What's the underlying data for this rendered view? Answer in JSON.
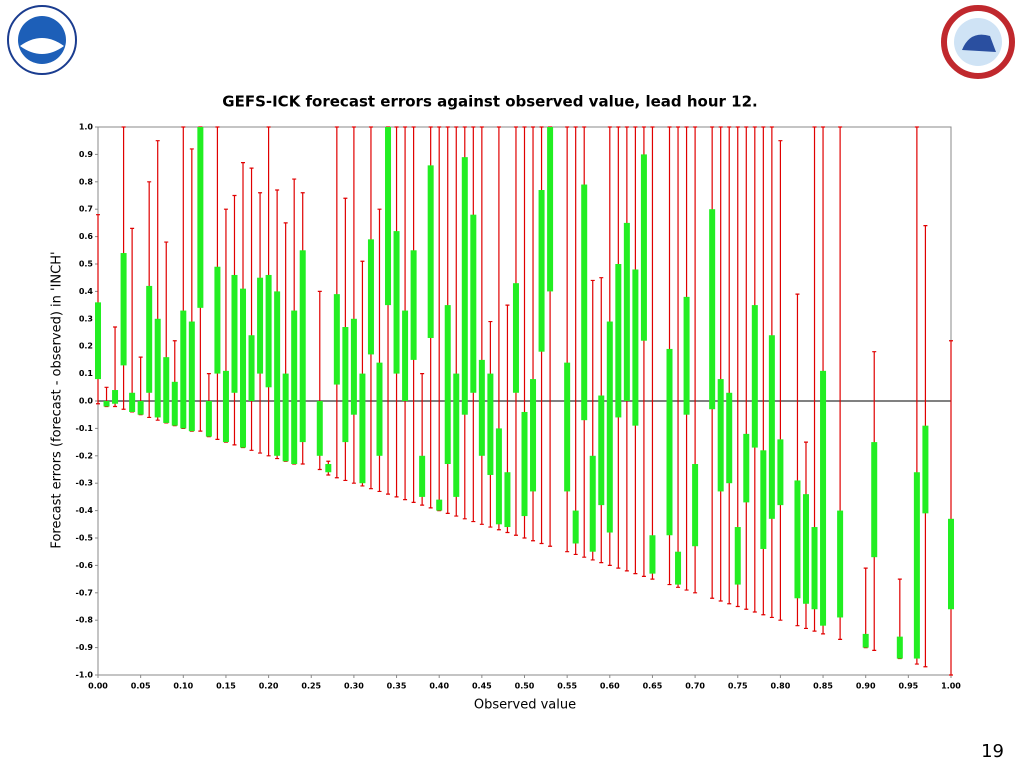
{
  "page_number": "19",
  "chart_data": {
    "type": "box",
    "title": "GEFS-ICK forecast errors against observed value, lead hour 12.",
    "x_label": "Observed value",
    "y_label": "Forecast errors (forecast - observed) in 'INCH'",
    "whisker_color": "#e00000",
    "box_color": "#22ee22",
    "x": [
      0.0,
      0.01,
      0.02,
      0.03,
      0.04,
      0.05,
      0.06,
      0.07,
      0.08,
      0.09,
      0.1,
      0.11,
      0.12,
      0.13,
      0.14,
      0.15,
      0.16,
      0.17,
      0.18,
      0.19,
      0.2,
      0.21,
      0.22,
      0.23,
      0.24,
      0.26,
      0.27,
      0.28,
      0.29,
      0.3,
      0.31,
      0.32,
      0.33,
      0.34,
      0.35,
      0.36,
      0.37,
      0.38,
      0.39,
      0.4,
      0.41,
      0.42,
      0.43,
      0.44,
      0.45,
      0.46,
      0.47,
      0.48,
      0.49,
      0.5,
      0.51,
      0.52,
      0.53,
      0.55,
      0.56,
      0.57,
      0.58,
      0.59,
      0.6,
      0.61,
      0.62,
      0.63,
      0.64,
      0.65,
      0.67,
      0.68,
      0.69,
      0.7,
      0.72,
      0.73,
      0.74,
      0.75,
      0.76,
      0.77,
      0.78,
      0.79,
      0.8,
      0.82,
      0.83,
      0.84,
      0.85,
      0.87,
      0.9,
      0.91,
      0.94,
      0.96,
      0.97,
      1.0
    ],
    "whisker_low": [
      -0.01,
      -0.02,
      -0.02,
      -0.03,
      -0.04,
      -0.05,
      -0.06,
      -0.07,
      -0.08,
      -0.09,
      -0.1,
      -0.11,
      -0.11,
      -0.13,
      -0.14,
      -0.15,
      -0.16,
      -0.17,
      -0.18,
      -0.19,
      -0.2,
      -0.21,
      -0.22,
      -0.23,
      -0.23,
      -0.25,
      -0.27,
      -0.28,
      -0.29,
      -0.3,
      -0.31,
      -0.32,
      -0.33,
      -0.34,
      -0.35,
      -0.36,
      -0.37,
      -0.38,
      -0.39,
      -0.4,
      -0.41,
      -0.42,
      -0.43,
      -0.44,
      -0.45,
      -0.46,
      -0.47,
      -0.48,
      -0.49,
      -0.5,
      -0.51,
      -0.52,
      -0.53,
      -0.55,
      -0.56,
      -0.57,
      -0.58,
      -0.59,
      -0.6,
      -0.61,
      -0.62,
      -0.63,
      -0.64,
      -0.65,
      -0.67,
      -0.68,
      -0.69,
      -0.7,
      -0.72,
      -0.73,
      -0.74,
      -0.75,
      -0.76,
      -0.77,
      -0.78,
      -0.79,
      -0.8,
      -0.82,
      -0.83,
      -0.84,
      -0.85,
      -0.87,
      -0.9,
      -0.91,
      -0.94,
      -0.96,
      -0.97,
      -1.0
    ],
    "box_low": [
      0.08,
      -0.02,
      -0.01,
      0.13,
      -0.04,
      -0.05,
      0.03,
      -0.06,
      -0.08,
      -0.09,
      -0.1,
      -0.11,
      0.34,
      -0.13,
      0.1,
      -0.15,
      0.03,
      -0.17,
      0.0,
      0.1,
      0.05,
      -0.2,
      -0.22,
      -0.23,
      -0.15,
      -0.2,
      -0.26,
      0.06,
      -0.15,
      -0.05,
      -0.3,
      0.17,
      -0.2,
      0.35,
      0.1,
      0.0,
      0.15,
      -0.35,
      0.23,
      -0.4,
      -0.23,
      -0.35,
      -0.05,
      0.03,
      -0.2,
      -0.27,
      -0.45,
      -0.46,
      0.03,
      -0.42,
      -0.33,
      0.18,
      0.4,
      -0.33,
      -0.52,
      -0.07,
      -0.55,
      -0.38,
      -0.48,
      -0.06,
      0.0,
      -0.09,
      0.22,
      -0.63,
      -0.49,
      -0.67,
      -0.05,
      -0.53,
      -0.03,
      -0.33,
      -0.3,
      -0.67,
      -0.37,
      -0.17,
      -0.54,
      -0.43,
      -0.38,
      -0.72,
      -0.74,
      -0.76,
      -0.82,
      -0.79,
      -0.9,
      -0.57,
      -0.94,
      -0.94,
      -0.41,
      -0.76
    ],
    "box_high": [
      0.36,
      0.0,
      0.04,
      0.54,
      0.03,
      0.0,
      0.42,
      0.3,
      0.16,
      0.07,
      0.33,
      0.29,
      1.0,
      0.0,
      0.49,
      0.11,
      0.46,
      0.41,
      0.24,
      0.45,
      0.46,
      0.4,
      0.1,
      0.33,
      0.55,
      0.0,
      -0.23,
      0.39,
      0.27,
      0.3,
      0.1,
      0.59,
      0.14,
      1.0,
      0.62,
      0.33,
      0.55,
      -0.2,
      0.86,
      -0.36,
      0.35,
      0.1,
      0.89,
      0.68,
      0.15,
      0.1,
      -0.1,
      -0.26,
      0.43,
      -0.04,
      0.08,
      0.77,
      1.0,
      0.14,
      -0.4,
      0.79,
      -0.2,
      0.02,
      0.29,
      0.5,
      0.65,
      0.48,
      0.9,
      -0.49,
      0.19,
      -0.55,
      0.38,
      -0.23,
      0.7,
      0.08,
      0.03,
      -0.46,
      -0.12,
      0.35,
      -0.18,
      0.24,
      -0.14,
      -0.29,
      -0.34,
      -0.46,
      0.11,
      -0.4,
      -0.85,
      -0.15,
      -0.86,
      -0.26,
      -0.09,
      -0.43
    ],
    "whisker_high": [
      0.68,
      0.05,
      0.27,
      1.0,
      0.63,
      0.16,
      0.8,
      0.95,
      0.58,
      0.22,
      1.0,
      0.92,
      1.0,
      0.1,
      1.0,
      0.7,
      0.75,
      0.87,
      0.85,
      0.76,
      1.0,
      0.77,
      0.65,
      0.81,
      0.76,
      0.4,
      -0.22,
      1.0,
      0.74,
      1.0,
      0.51,
      1.0,
      0.7,
      1.0,
      1.0,
      1.0,
      1.0,
      0.1,
      1.0,
      1.0,
      1.0,
      1.0,
      1.0,
      1.0,
      1.0,
      0.29,
      1.0,
      0.35,
      1.0,
      1.0,
      1.0,
      1.0,
      1.0,
      1.0,
      1.0,
      1.0,
      0.44,
      0.45,
      1.0,
      1.0,
      1.0,
      1.0,
      1.0,
      1.0,
      1.0,
      1.0,
      1.0,
      1.0,
      1.0,
      1.0,
      1.0,
      1.0,
      1.0,
      1.0,
      1.0,
      1.0,
      0.95,
      0.39,
      -0.15,
      1.0,
      1.0,
      1.0,
      -0.61,
      0.18,
      -0.65,
      1.0,
      0.64,
      0.22
    ],
    "xlim": [
      0,
      1
    ],
    "ylim": [
      -1,
      1
    ],
    "xticks": [
      {
        "value": 0,
        "label": "0.00"
      },
      {
        "value": 0.05,
        "label": "0.05"
      },
      {
        "value": 0.1,
        "label": "0.10"
      },
      {
        "value": 0.15,
        "label": "0.15"
      },
      {
        "value": 0.2,
        "label": "0.20"
      },
      {
        "value": 0.25,
        "label": "0.25"
      },
      {
        "value": 0.3,
        "label": "0.30"
      },
      {
        "value": 0.35,
        "label": "0.35"
      },
      {
        "value": 0.4,
        "label": "0.40"
      },
      {
        "value": 0.45,
        "label": "0.45"
      },
      {
        "value": 0.5,
        "label": "0.50"
      },
      {
        "value": 0.55,
        "label": "0.55"
      },
      {
        "value": 0.6,
        "label": "0.60"
      },
      {
        "value": 0.65,
        "label": "0.65"
      },
      {
        "value": 0.7,
        "label": "0.70"
      },
      {
        "value": 0.75,
        "label": "0.75"
      },
      {
        "value": 0.8,
        "label": "0.80"
      },
      {
        "value": 0.85,
        "label": "0.85"
      },
      {
        "value": 0.9,
        "label": "0.90"
      },
      {
        "value": 0.95,
        "label": "0.95"
      },
      {
        "value": 1,
        "label": "1.00"
      }
    ],
    "yticks": [
      {
        "value": 1,
        "label": "1.0"
      },
      {
        "value": 0.9,
        "label": "0.9"
      },
      {
        "value": 0.8,
        "label": "0.8"
      },
      {
        "value": 0.7,
        "label": "0.7"
      },
      {
        "value": 0.6,
        "label": "0.6"
      },
      {
        "value": 0.5,
        "label": "0.5"
      },
      {
        "value": 0.4,
        "label": "0.4"
      },
      {
        "value": 0.3,
        "label": "0.3"
      },
      {
        "value": 0.2,
        "label": "0.2"
      },
      {
        "value": 0.1,
        "label": "0.1"
      },
      {
        "value": 0,
        "label": "0.0"
      },
      {
        "value": -0.1,
        "label": "-0.1"
      },
      {
        "value": -0.2,
        "label": "-0.2"
      },
      {
        "value": -0.3,
        "label": "-0.3"
      },
      {
        "value": -0.4,
        "label": "-0.4"
      },
      {
        "value": -0.5,
        "label": "-0.5"
      },
      {
        "value": -0.6,
        "label": "-0.6"
      },
      {
        "value": -0.7,
        "label": "-0.7"
      },
      {
        "value": -0.8,
        "label": "-0.8"
      },
      {
        "value": -0.9,
        "label": "-0.9"
      },
      {
        "value": -1,
        "label": "-1.0"
      }
    ]
  }
}
